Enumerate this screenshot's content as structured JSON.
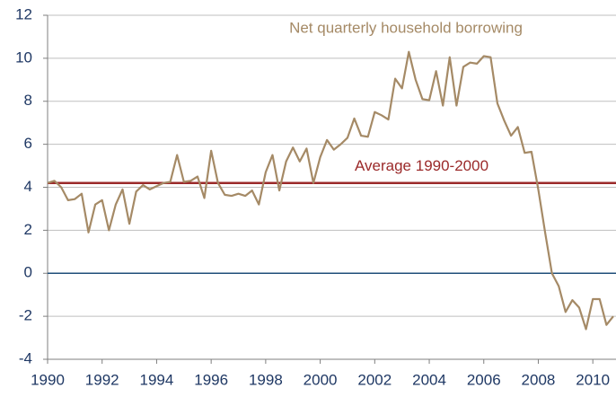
{
  "chart_data": {
    "type": "line",
    "annotation": "Net quarterly household borrowing",
    "x": [
      1990,
      1990.25,
      1990.5,
      1990.75,
      1991,
      1991.25,
      1991.5,
      1991.75,
      1992,
      1992.25,
      1992.5,
      1992.75,
      1993,
      1993.25,
      1993.5,
      1993.75,
      1994,
      1994.25,
      1994.5,
      1994.75,
      1995,
      1995.25,
      1995.5,
      1995.75,
      1996,
      1996.25,
      1996.5,
      1996.75,
      1997,
      1997.25,
      1997.5,
      1997.75,
      1998,
      1998.25,
      1998.5,
      1998.75,
      1999,
      1999.25,
      1999.5,
      1999.75,
      2000,
      2000.25,
      2000.5,
      2000.75,
      2001,
      2001.25,
      2001.5,
      2001.75,
      2002,
      2002.25,
      2002.5,
      2002.75,
      2003,
      2003.25,
      2003.5,
      2003.75,
      2004,
      2004.25,
      2004.5,
      2004.75,
      2005,
      2005.25,
      2005.5,
      2005.75,
      2006,
      2006.25,
      2006.5,
      2006.75,
      2007,
      2007.25,
      2007.5,
      2007.75,
      2008,
      2008.25,
      2008.5,
      2008.75,
      2009,
      2009.25,
      2009.5,
      2009.75,
      2010,
      2010.25,
      2010.5,
      2010.75
    ],
    "series": [
      {
        "name": "Net quarterly household borrowing",
        "color": "#a58a66",
        "values": [
          4.2,
          4.3,
          4.0,
          3.4,
          3.45,
          3.7,
          1.9,
          3.2,
          3.4,
          2.0,
          3.2,
          3.9,
          2.3,
          3.8,
          4.1,
          3.9,
          4.05,
          4.2,
          4.25,
          5.5,
          4.25,
          4.3,
          4.5,
          3.5,
          5.7,
          4.2,
          3.65,
          3.6,
          3.7,
          3.6,
          3.85,
          3.2,
          4.7,
          5.5,
          3.85,
          5.2,
          5.85,
          5.2,
          5.8,
          4.2,
          5.4,
          6.2,
          5.75,
          6.0,
          6.3,
          7.2,
          6.4,
          6.35,
          7.5,
          7.35,
          7.15,
          9.05,
          8.6,
          10.3,
          9.0,
          8.1,
          8.05,
          9.4,
          7.8,
          10.05,
          7.8,
          9.6,
          9.8,
          9.75,
          10.1,
          10.05,
          7.9,
          7.1,
          6.4,
          6.8,
          5.6,
          5.65,
          3.9,
          1.9,
          0.0,
          -0.6,
          -1.8,
          -1.25,
          -1.6,
          -2.6,
          -1.2,
          -1.2,
          -2.4,
          -2.0
        ]
      }
    ],
    "reference_line": {
      "value": 4.2,
      "label": "Average 1990-2000",
      "color": "#9b2a2a"
    },
    "zero_line_color": "#1f4e79",
    "xlim": [
      1990,
      2010.85
    ],
    "xticks": [
      1990,
      1992,
      1994,
      1996,
      1998,
      2000,
      2002,
      2004,
      2006,
      2008,
      2010
    ],
    "ylim": [
      -4,
      12
    ],
    "yticks": [
      -4,
      -2,
      0,
      2,
      4,
      6,
      8,
      10,
      12
    ],
    "grid": true
  }
}
